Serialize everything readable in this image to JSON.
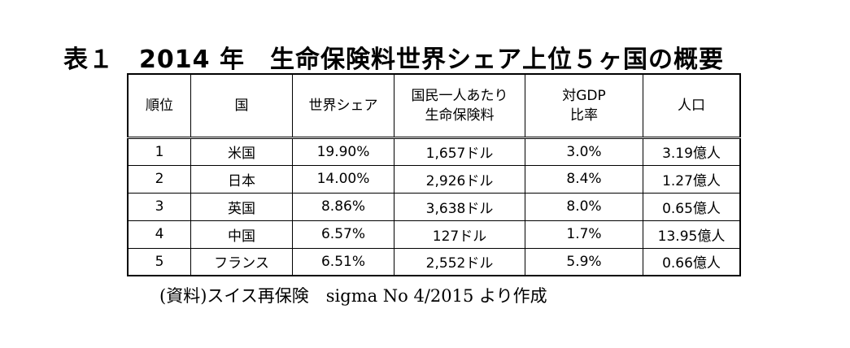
{
  "title": "表１　2014 年　生命保険料世界シェア上位５ヶ国の概要",
  "table": {
    "headers": [
      "順位",
      "国",
      "世界シェア",
      "国民一人あたり\n生命保険料",
      "対GDP\n比率",
      "人口"
    ],
    "rows": [
      [
        "1",
        "米国",
        "19.90%",
        "1,657ドル",
        "3.0%",
        "3.19億人"
      ],
      [
        "2",
        "日本",
        "14.00%",
        "2,926ドル",
        "8.4%",
        "1.27億人"
      ],
      [
        "3",
        "英国",
        "8.86%",
        "3,638ドル",
        "8.0%",
        "0.65億人"
      ],
      [
        "4",
        "中国",
        "6.57%",
        "127ドル",
        "1.7%",
        "13.95億人"
      ],
      [
        "5",
        "フランス",
        "6.51%",
        "2,552ドル",
        "5.9%",
        "0.66億人"
      ]
    ]
  },
  "source": "(資料)スイス再保険　sigma No 4/2015 より作成"
}
